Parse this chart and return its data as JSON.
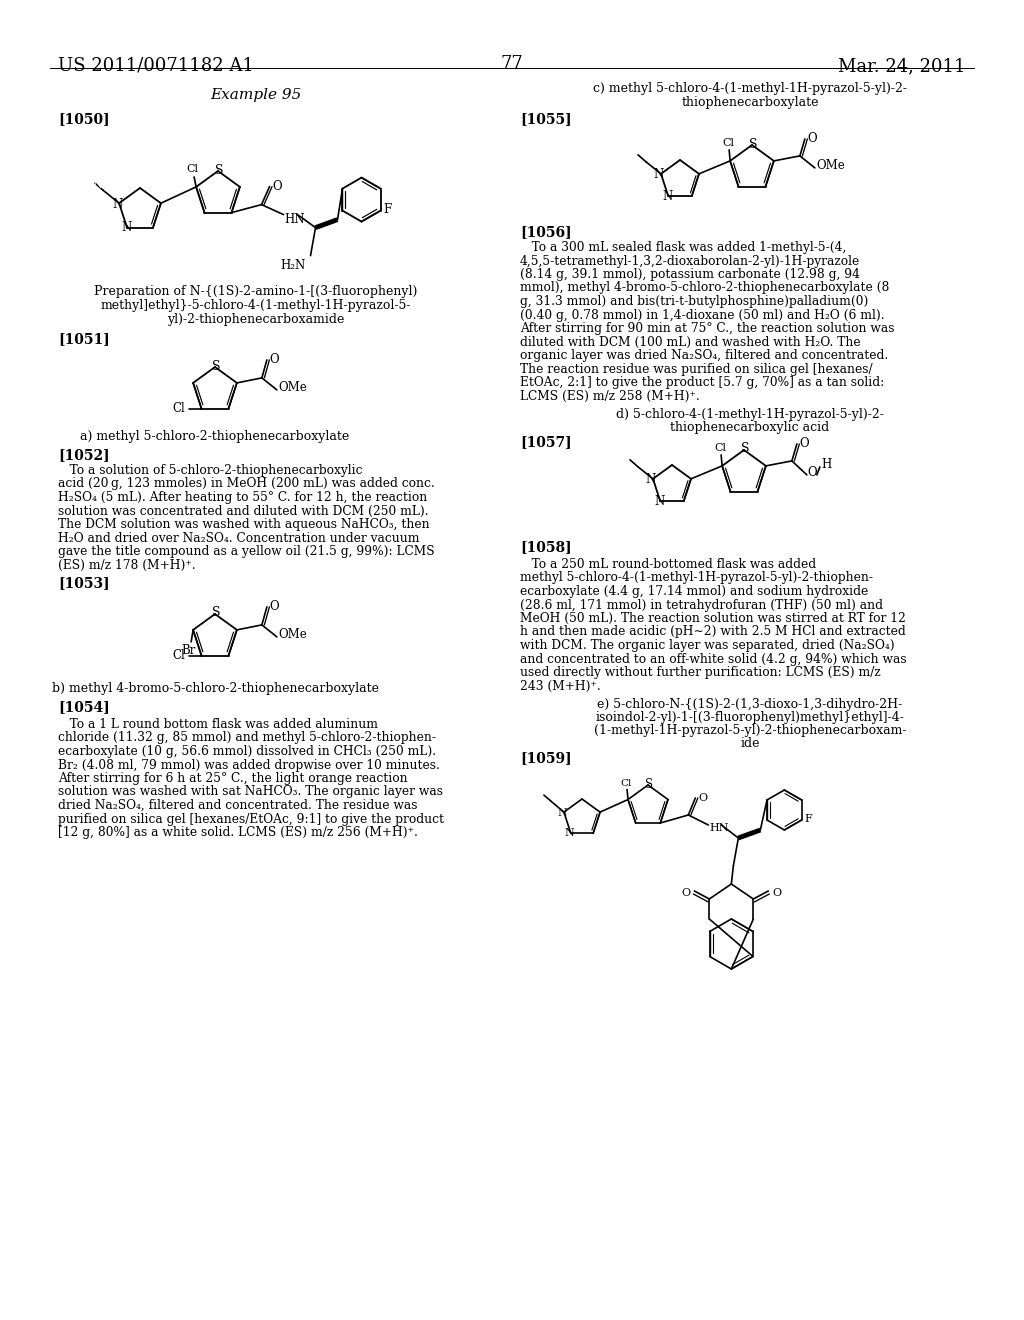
{
  "bg": "#ffffff",
  "header_left": "US 2011/0071182 A1",
  "header_right": "Mar. 24, 2011",
  "page_num": "77",
  "example": "Example 95",
  "col_divider": 512
}
